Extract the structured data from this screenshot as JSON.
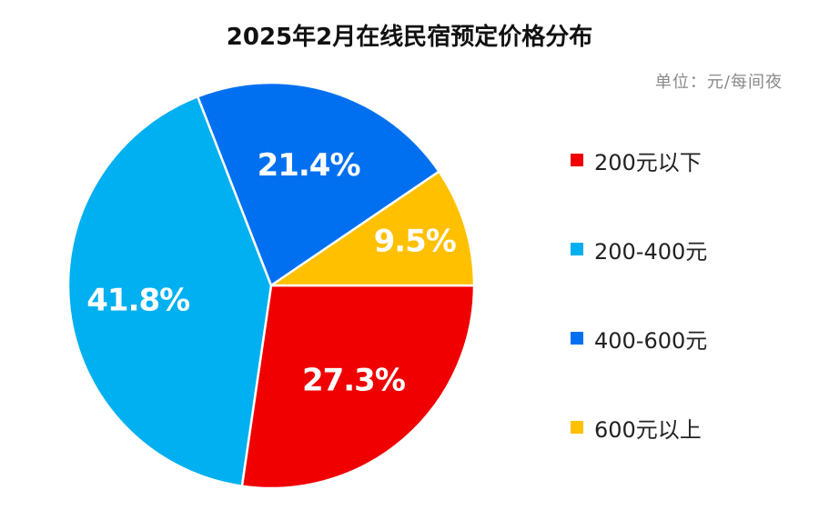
{
  "chart_data": {
    "type": "pie",
    "title": "2025年2月在线民宿预定价格分布",
    "unit_note": "单位：元/每间夜",
    "slices": [
      {
        "name": "200元以下",
        "value": 27.3,
        "label": "27.3%",
        "color": "#f00000"
      },
      {
        "name": "200-400元",
        "value": 41.8,
        "label": "41.8%",
        "color": "#00b0f0"
      },
      {
        "name": "400-600元",
        "value": 21.4,
        "label": "21.4%",
        "color": "#0070f0"
      },
      {
        "name": "600元以上",
        "value": 9.5,
        "label": "9.5%",
        "color": "#ffc000"
      }
    ],
    "legend_position": "right"
  }
}
